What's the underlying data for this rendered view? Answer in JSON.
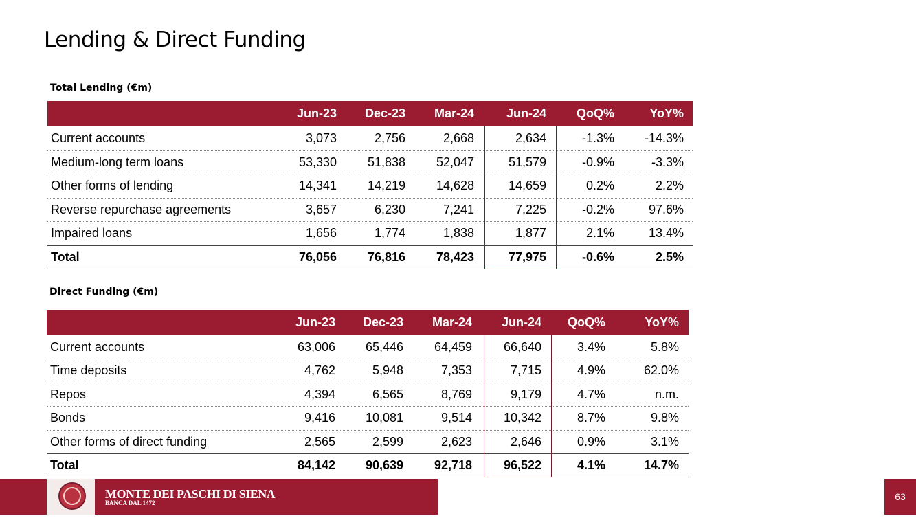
{
  "title": "Lending & Direct Funding",
  "tables": [
    {
      "caption": "Total Lending (€m)",
      "header": [
        "Jun-23",
        "Dec-23",
        "Mar-24",
        "Jun-24",
        "QoQ%",
        "YoY%"
      ],
      "rows": [
        {
          "label": "Current accounts",
          "cells": [
            "3,073",
            "2,756",
            "2,668",
            "2,634",
            "-1.3%",
            "-14.3%"
          ]
        },
        {
          "label": "Medium-long term loans",
          "cells": [
            "53,330",
            "51,838",
            "52,047",
            "51,579",
            "-0.9%",
            "-3.3%"
          ]
        },
        {
          "label": "Other forms of lending",
          "cells": [
            "14,341",
            "14,219",
            "14,628",
            "14,659",
            "0.2%",
            "2.2%"
          ]
        },
        {
          "label": "Reverse repurchase agreements",
          "cells": [
            "3,657",
            "6,230",
            "7,241",
            "7,225",
            "-0.2%",
            "97.6%"
          ]
        },
        {
          "label": "Impaired loans",
          "cells": [
            "1,656",
            "1,774",
            "1,838",
            "1,877",
            "2.1%",
            "13.4%"
          ]
        }
      ],
      "total": {
        "label": "Total",
        "cells": [
          "76,056",
          "76,816",
          "78,423",
          "77,975",
          "-0.6%",
          "2.5%"
        ]
      }
    },
    {
      "caption": "Direct Funding (€m)",
      "header": [
        "Jun-23",
        "Dec-23",
        "Mar-24",
        "Jun-24",
        "QoQ%",
        "YoY%"
      ],
      "rows": [
        {
          "label": "Current accounts",
          "cells": [
            "63,006",
            "65,446",
            "64,459",
            "66,640",
            "3.4%",
            "5.8%"
          ]
        },
        {
          "label": "Time deposits",
          "cells": [
            "4,762",
            "5,948",
            "7,353",
            "7,715",
            "4.9%",
            "62.0%"
          ]
        },
        {
          "label": "Repos",
          "cells": [
            "4,394",
            "6,565",
            "8,769",
            "9,179",
            "4.7%",
            "n.m."
          ]
        },
        {
          "label": "Bonds",
          "cells": [
            "9,416",
            "10,081",
            "9,514",
            "10,342",
            "8.7%",
            "9.8%"
          ]
        },
        {
          "label": "Other forms of direct funding",
          "cells": [
            "2,565",
            "2,599",
            "2,623",
            "2,646",
            "0.9%",
            "3.1%"
          ]
        }
      ],
      "total": {
        "label": "Total",
        "cells": [
          "84,142",
          "90,639",
          "92,718",
          "96,522",
          "4.1%",
          "14.7%"
        ]
      }
    }
  ],
  "footer": {
    "brand": "MONTE DEI PASCHI DI SIENA",
    "tagline": "BANCA DAL 1472",
    "page": "63"
  }
}
